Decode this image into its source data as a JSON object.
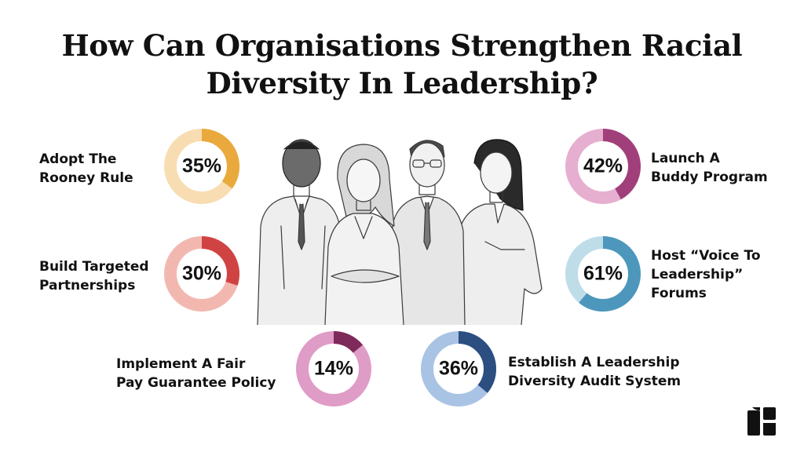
{
  "title": "How Can Organisations Strengthen Racial\nDiversity In Leadership?",
  "chart_data": {
    "type": "pie",
    "style": "donut",
    "items": [
      {
        "label": "Adopt The\nRooney Rule",
        "value": 35,
        "display": "35%",
        "fg": "#E9A93C",
        "bg": "#F8DDB2"
      },
      {
        "label": "Build Targeted\nPartnerships",
        "value": 30,
        "display": "30%",
        "fg": "#D04343",
        "bg": "#F2B8B0"
      },
      {
        "label": "Implement A Fair\nPay Guarantee Policy",
        "value": 14,
        "display": "14%",
        "fg": "#7E2A5A",
        "bg": "#DF9CC6"
      },
      {
        "label": "Establish A Leadership\nDiversity Audit System",
        "value": 36,
        "display": "36%",
        "fg": "#2C4E80",
        "bg": "#A9C3E4"
      },
      {
        "label": "Host “Voice To\nLeadership”\nForums",
        "value": 61,
        "display": "61%",
        "fg": "#4C97BB",
        "bg": "#BFDCE9"
      },
      {
        "label": "Launch A\nBuddy Program",
        "value": 42,
        "display": "42%",
        "fg": "#A13F7B",
        "bg": "#E6AFD0"
      }
    ]
  },
  "icons": {
    "illustration": "business-team-sketch",
    "logo": "brand-logo"
  }
}
